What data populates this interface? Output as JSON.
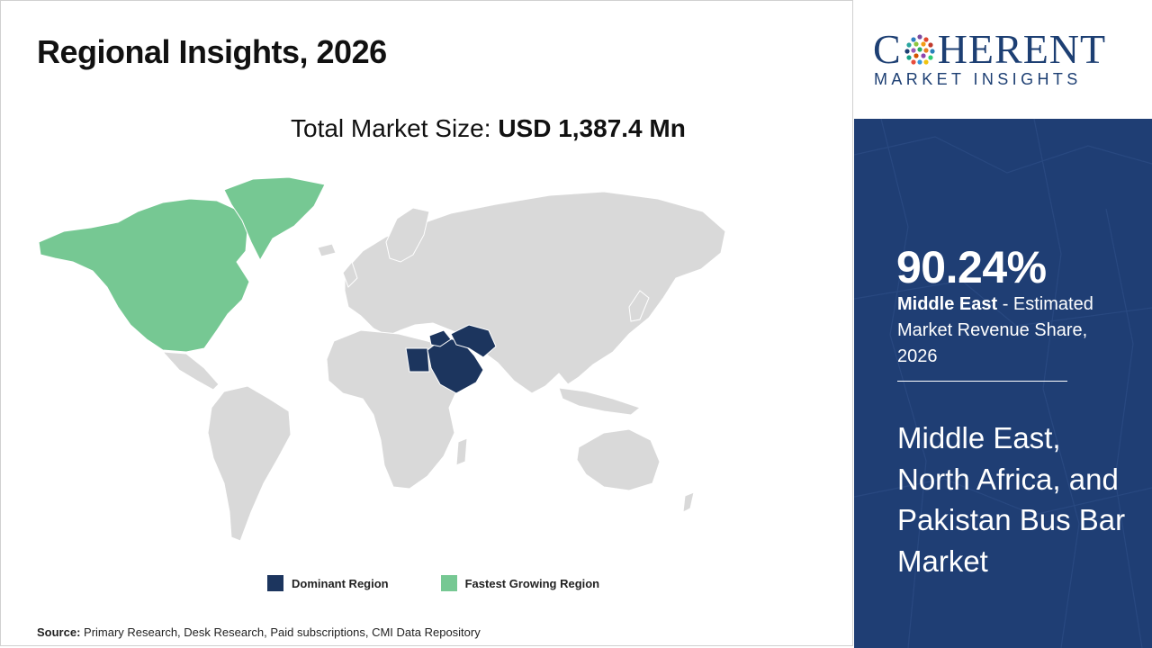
{
  "title": "Regional Insights, 2026",
  "market_size": {
    "label": "Total Market Size: ",
    "value": "USD 1,387.4 Mn"
  },
  "legend": [
    {
      "label": "Dominant Region",
      "color": "#1c355e"
    },
    {
      "label": "Fastest Growing Region",
      "color": "#76c893"
    }
  ],
  "colors": {
    "base_land": "#d9d9d9",
    "border": "#ffffff",
    "dominant": "#1c355e",
    "fastest": "#76c893",
    "side_panel": "#1f3e74",
    "brand": "#1d3f73"
  },
  "map": {
    "dominant_region": "Middle East and Egypt",
    "fastest_region": "North America and Greenland"
  },
  "source": {
    "label": "Source:",
    "text": " Primary Research, Desk Research, Paid subscriptions, CMI Data Repository"
  },
  "logo": {
    "text_before": "C",
    "text_after": "HERENT",
    "subtitle": "MARKET INSIGHTS"
  },
  "side": {
    "share": "90.24%",
    "region": "Middle East",
    "desc": " - Estimated Market Revenue Share, 2026",
    "market_name": "Middle East, North Africa, and Pakistan Bus Bar Market"
  }
}
